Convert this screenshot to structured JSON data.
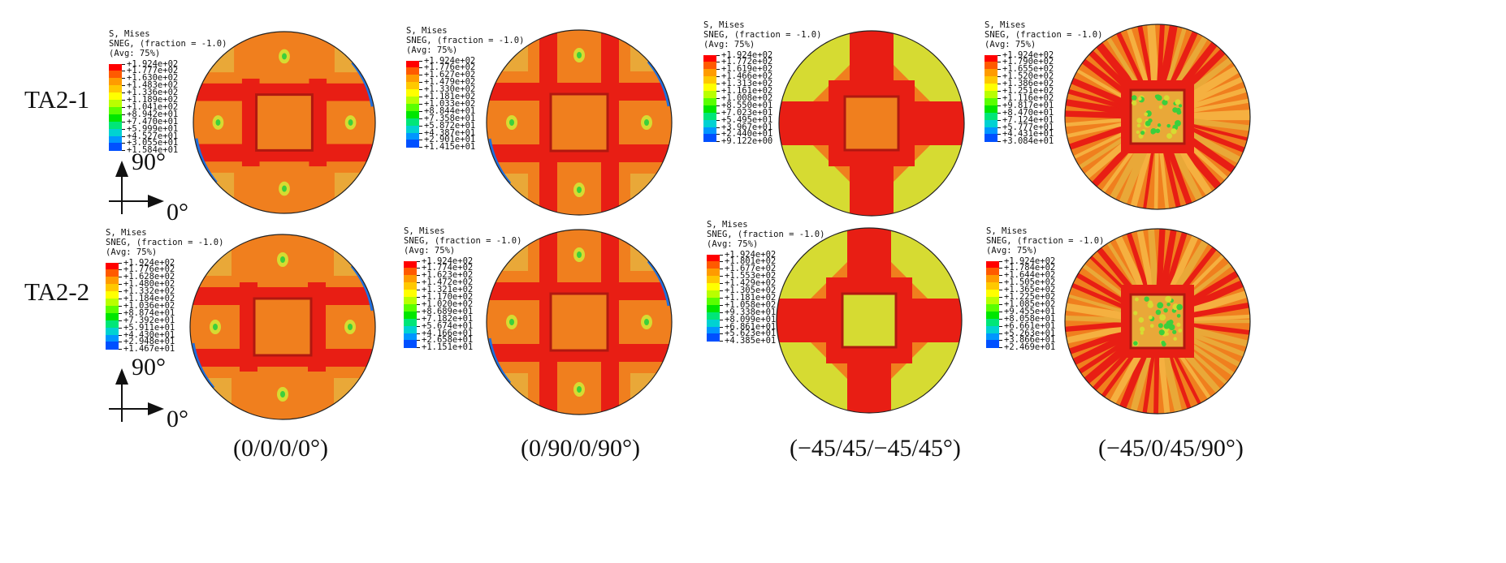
{
  "row_labels": [
    "TA2-1",
    "TA2-2"
  ],
  "column_labels": [
    "(0/0/0/0°)",
    "(0/90/0/90°)",
    "(−45/45/−45/45°)",
    "(−45/0/45/90°)"
  ],
  "axis_labels": {
    "vertical": "90°",
    "horizontal": "0°"
  },
  "legend_header": [
    "S, Mises",
    "SNEG, (fraction = -1.0)",
    "(Avg: 75%)"
  ],
  "colors": {
    "scale": [
      "#ff0000",
      "#ff5a00",
      "#ff9b00",
      "#ffc800",
      "#ffff00",
      "#b9ff00",
      "#5aff00",
      "#00e600",
      "#00e678",
      "#00d2d2",
      "#0096ff",
      "#0050ff",
      "#0000e6"
    ],
    "red": "#e81e14",
    "orange": "#f07f1e",
    "yellow": "#e9a838",
    "lime": "#d6db32",
    "green": "#3ccf3c"
  },
  "panels": [
    {
      "row": 0,
      "col": 0,
      "pattern": "aligned",
      "legend": [
        "+1.924e+02",
        "+1.777e+02",
        "+1.630e+02",
        "+1.483e+02",
        "+1.336e+02",
        "+1.189e+02",
        "+1.041e+02",
        "+8.942e+01",
        "+7.470e+01",
        "+5.999e+01",
        "+4.527e+01",
        "+3.055e+01",
        "+1.584e+01"
      ]
    },
    {
      "row": 0,
      "col": 1,
      "pattern": "cross",
      "legend": [
        "+1.924e+02",
        "+1.776e+02",
        "+1.627e+02",
        "+1.479e+02",
        "+1.330e+02",
        "+1.181e+02",
        "+1.033e+02",
        "+8.844e+01",
        "+7.358e+01",
        "+5.872e+01",
        "+4.387e+01",
        "+2.901e+01",
        "+1.415e+01"
      ]
    },
    {
      "row": 0,
      "col": 2,
      "pattern": "diagonal",
      "legend": [
        "+1.924e+02",
        "+1.772e+02",
        "+1.619e+02",
        "+1.466e+02",
        "+1.313e+02",
        "+1.161e+02",
        "+1.008e+02",
        "+8.550e+01",
        "+7.023e+01",
        "+5.495e+01",
        "+3.967e+01",
        "+2.440e+01",
        "+9.122e+00"
      ]
    },
    {
      "row": 0,
      "col": 3,
      "pattern": "quasi",
      "legend": [
        "+1.924e+02",
        "+1.790e+02",
        "+1.655e+02",
        "+1.520e+02",
        "+1.386e+02",
        "+1.251e+02",
        "+1.116e+02",
        "+9.817e+01",
        "+8.470e+01",
        "+7.124e+01",
        "+5.777e+01",
        "+4.431e+01",
        "+3.084e+01"
      ]
    },
    {
      "row": 1,
      "col": 0,
      "pattern": "aligned",
      "legend": [
        "+1.924e+02",
        "+1.776e+02",
        "+1.628e+02",
        "+1.480e+02",
        "+1.332e+02",
        "+1.184e+02",
        "+1.036e+02",
        "+8.874e+01",
        "+7.392e+01",
        "+5.911e+01",
        "+4.430e+01",
        "+2.948e+01",
        "+1.467e+01"
      ]
    },
    {
      "row": 1,
      "col": 1,
      "pattern": "cross",
      "legend": [
        "+1.924e+02",
        "+1.774e+02",
        "+1.623e+02",
        "+1.472e+02",
        "+1.321e+02",
        "+1.170e+02",
        "+1.020e+02",
        "+8.689e+01",
        "+7.182e+01",
        "+5.674e+01",
        "+4.166e+01",
        "+2.658e+01",
        "+1.151e+01"
      ]
    },
    {
      "row": 1,
      "col": 2,
      "pattern": "diagonal",
      "legend": [
        "+1.924e+02",
        "+1.801e+02",
        "+1.677e+02",
        "+1.553e+02",
        "+1.429e+02",
        "+1.305e+02",
        "+1.181e+02",
        "+1.058e+02",
        "+9.338e+01",
        "+8.099e+01",
        "+6.861e+01",
        "+5.623e+01",
        "+4.385e+01"
      ]
    },
    {
      "row": 1,
      "col": 3,
      "pattern": "quasi",
      "legend": [
        "+1.924e+02",
        "+1.784e+02",
        "+1.644e+02",
        "+1.505e+02",
        "+1.365e+02",
        "+1.225e+02",
        "+1.085e+02",
        "+9.455e+01",
        "+8.058e+01",
        "+6.661e+01",
        "+5.263e+01",
        "+3.866e+01",
        "+2.469e+01"
      ]
    }
  ]
}
